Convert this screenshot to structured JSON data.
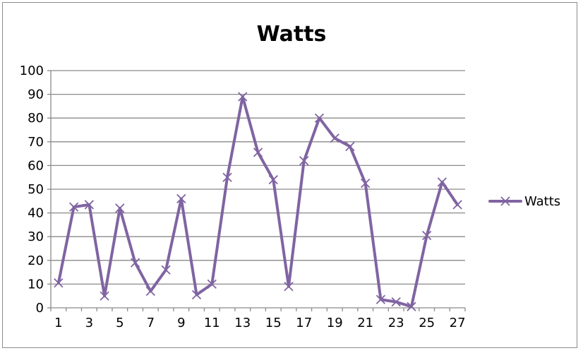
{
  "chart_data": {
    "type": "line",
    "title": "Watts",
    "xlabel": "",
    "ylabel": "",
    "ylim": [
      0,
      100
    ],
    "y_ticks": [
      "0",
      "10",
      "20",
      "30",
      "40",
      "50",
      "60",
      "70",
      "80",
      "90",
      "100"
    ],
    "x_tick_labels": [
      "1",
      "3",
      "5",
      "7",
      "9",
      "11",
      "13",
      "15",
      "17",
      "19",
      "21",
      "23",
      "25",
      "27"
    ],
    "x": [
      1,
      2,
      3,
      4,
      5,
      6,
      7,
      8,
      9,
      10,
      11,
      12,
      13,
      14,
      15,
      16,
      17,
      18,
      19,
      20,
      21,
      22,
      23,
      24,
      25,
      26,
      27
    ],
    "series": [
      {
        "name": "Watts",
        "color": "#8064a2",
        "marker": "x",
        "values": [
          10.5,
          42.5,
          43.5,
          5,
          42,
          19,
          7,
          16,
          46,
          5.5,
          10,
          55,
          89,
          65.5,
          54,
          9,
          62,
          80,
          71.5,
          68,
          52.5,
          3.5,
          2.5,
          0.5,
          30.5,
          53,
          43.5
        ]
      }
    ],
    "grid": true,
    "legend_position": "right"
  }
}
